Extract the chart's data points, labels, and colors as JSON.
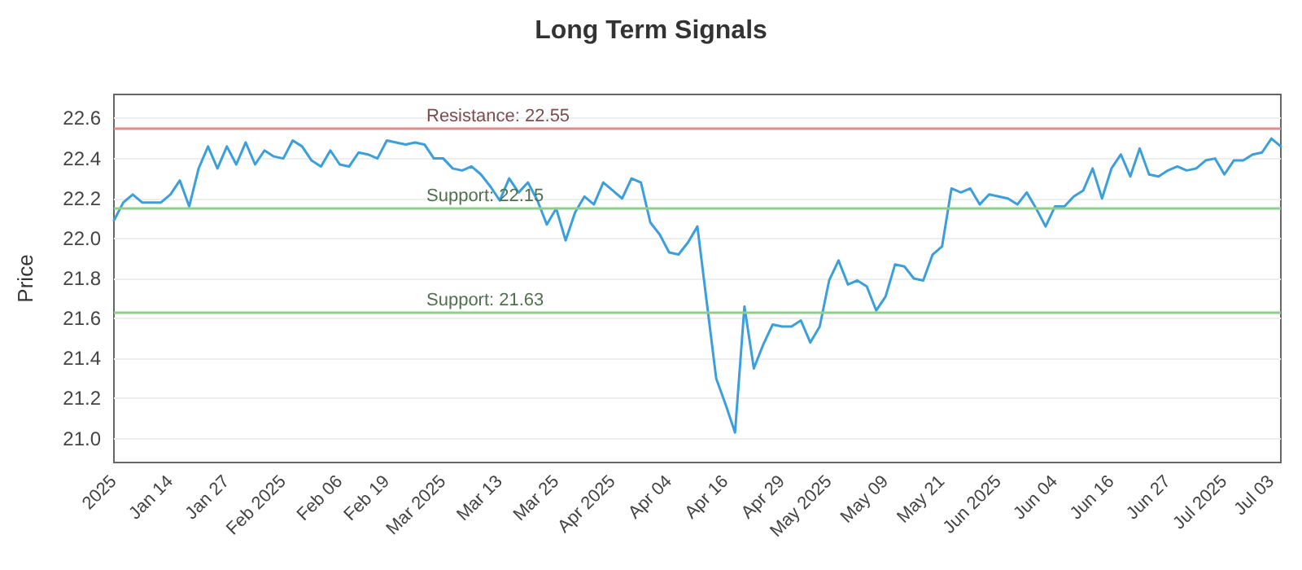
{
  "chart_data": {
    "type": "line",
    "title": "Long Term Signals",
    "ylabel": "Price",
    "categories": [
      "2025",
      null,
      null,
      null,
      null,
      null,
      "Jan 14",
      null,
      null,
      null,
      null,
      null,
      "Jan 27",
      null,
      null,
      null,
      null,
      null,
      "Feb 2025",
      null,
      null,
      null,
      null,
      null,
      "Feb 06",
      null,
      null,
      null,
      null,
      "Feb 19",
      null,
      null,
      null,
      null,
      null,
      "Mar 2025",
      null,
      null,
      null,
      null,
      null,
      "Mar 13",
      null,
      null,
      null,
      null,
      null,
      "Mar 25",
      null,
      null,
      null,
      null,
      null,
      "Apr 2025",
      null,
      null,
      null,
      null,
      null,
      "Apr 04",
      null,
      null,
      null,
      null,
      null,
      "Apr 16",
      null,
      null,
      null,
      null,
      null,
      "Apr 29",
      null,
      null,
      null,
      null,
      "May 2025",
      null,
      null,
      null,
      null,
      null,
      "May 09",
      null,
      null,
      null,
      null,
      null,
      "May 21",
      null,
      null,
      null,
      null,
      null,
      "Jun 2025",
      null,
      null,
      null,
      null,
      null,
      "Jun 04",
      null,
      null,
      null,
      null,
      null,
      "Jun 16",
      null,
      null,
      null,
      null,
      null,
      "Jun 27",
      null,
      null,
      null,
      null,
      null,
      "Jul 2025",
      null,
      null,
      null,
      null,
      "Jul 03",
      null
    ],
    "series": [
      {
        "color": "#3a9fdc",
        "values": [
          22.09,
          22.18,
          22.22,
          22.18,
          22.18,
          22.18,
          22.22,
          22.29,
          22.16,
          22.35,
          22.46,
          22.35,
          22.46,
          22.37,
          22.48,
          22.37,
          22.44,
          22.41,
          22.4,
          22.49,
          22.46,
          22.39,
          22.36,
          22.44,
          22.37,
          22.36,
          22.43,
          22.42,
          22.4,
          22.49,
          22.48,
          22.47,
          22.48,
          22.47,
          22.4,
          22.4,
          22.35,
          22.34,
          22.36,
          22.32,
          22.26,
          22.19,
          22.3,
          22.23,
          22.28,
          22.19,
          22.07,
          22.15,
          21.99,
          22.13,
          22.21,
          22.17,
          22.28,
          22.24,
          22.2,
          22.3,
          22.28,
          22.08,
          22.02,
          21.93,
          21.92,
          21.98,
          22.06,
          21.68,
          21.3,
          21.17,
          21.03,
          21.66,
          21.35,
          21.47,
          21.57,
          21.56,
          21.56,
          21.59,
          21.48,
          21.56,
          21.79,
          21.89,
          21.77,
          21.79,
          21.76,
          21.64,
          21.71,
          21.87,
          21.86,
          21.8,
          21.79,
          21.92,
          21.96,
          22.25,
          22.23,
          22.25,
          22.17,
          22.22,
          22.21,
          22.2,
          22.17,
          22.23,
          22.15,
          22.06,
          22.16,
          22.16,
          22.21,
          22.24,
          22.35,
          22.2,
          22.35,
          22.42,
          22.31,
          22.45,
          22.32,
          22.31,
          22.34,
          22.36,
          22.34,
          22.35,
          22.39,
          22.4,
          22.32,
          22.39,
          22.39,
          22.42,
          22.43,
          22.5,
          22.46
        ]
      }
    ],
    "ylim": [
      20.88,
      22.72
    ],
    "yticks": [
      {
        "value": 21,
        "label": "21.0"
      },
      21.2,
      21.4,
      21.6,
      21.8,
      {
        "value": 22,
        "label": "22.0"
      },
      22.2,
      22.4,
      22.6
    ],
    "grid": "y",
    "marker": "none",
    "line_style": "solid",
    "ref_lines": [
      {
        "axis": "y",
        "value": 22.55,
        "label": "Resistance: 22.55",
        "color": "#e08c8a"
      },
      {
        "axis": "y",
        "value": 22.15,
        "label": "Support: 22.15",
        "color": "#8fce8c"
      },
      {
        "axis": "y",
        "value": 21.63,
        "label": "Support: 21.63",
        "color": "#8fce8c"
      }
    ]
  }
}
